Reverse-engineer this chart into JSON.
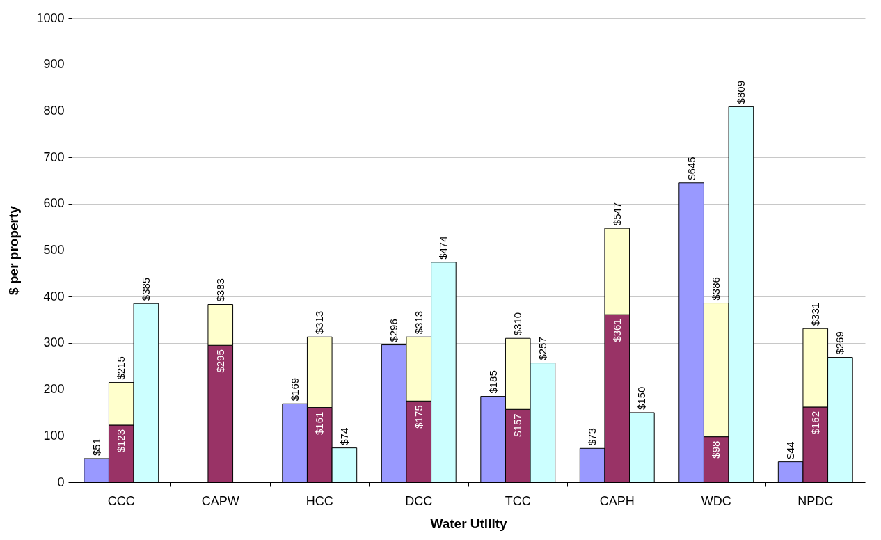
{
  "chart_data": {
    "type": "bar",
    "xlabel": "Water Utility",
    "ylabel": "$ per property",
    "stacked": true,
    "categories": [
      null,
      "CCC",
      null,
      null,
      "CAPW",
      null,
      null,
      "HCC",
      null,
      null,
      "DCC",
      null,
      null,
      "TCC",
      null,
      null,
      "CAPH",
      null,
      null,
      "WDC",
      null,
      null,
      "NPDC",
      null
    ],
    "series": [
      {
        "color": "#9999ff",
        "values": [
          51,
          null,
          null,
          null,
          null,
          null,
          169,
          null,
          null,
          296,
          null,
          null,
          185,
          null,
          null,
          73,
          null,
          null,
          645,
          null,
          null,
          44,
          null,
          null
        ],
        "value_labels": [
          "$51",
          null,
          null,
          null,
          null,
          null,
          "$169",
          null,
          null,
          "$296",
          null,
          null,
          "$185",
          null,
          null,
          "$73",
          null,
          null,
          "$645",
          null,
          null,
          "$44",
          null,
          null
        ]
      },
      {
        "color": "#993366",
        "values": [
          null,
          123,
          null,
          null,
          295,
          null,
          null,
          161,
          null,
          null,
          175,
          null,
          null,
          157,
          null,
          null,
          361,
          null,
          null,
          98,
          null,
          null,
          162,
          null
        ],
        "value_labels": [
          null,
          "$123",
          null,
          null,
          "$295",
          null,
          null,
          "$161",
          null,
          null,
          "$175",
          null,
          null,
          "$157",
          null,
          null,
          "$361",
          null,
          null,
          "$98",
          null,
          null,
          "$162",
          null
        ]
      },
      {
        "color": "#ffffcc",
        "values": [
          null,
          92,
          null,
          null,
          88,
          null,
          null,
          152,
          null,
          null,
          138,
          null,
          null,
          153,
          null,
          null,
          186,
          null,
          null,
          288,
          null,
          null,
          169,
          null
        ]
      },
      {
        "color": "#ccffff",
        "values": [
          null,
          null,
          385,
          null,
          null,
          null,
          null,
          null,
          74,
          null,
          null,
          474,
          null,
          null,
          257,
          null,
          null,
          150,
          null,
          null,
          809,
          null,
          null,
          269
        ],
        "value_labels": [
          null,
          null,
          "$385",
          null,
          null,
          null,
          null,
          null,
          "$74",
          null,
          null,
          "$474",
          null,
          null,
          "$257",
          null,
          null,
          "$150",
          null,
          null,
          "$809",
          null,
          null,
          "$269"
        ]
      }
    ],
    "totals": [
      null,
      "$215",
      null,
      null,
      "$383",
      null,
      null,
      "$313",
      null,
      null,
      "$313",
      null,
      null,
      "$310",
      null,
      null,
      "$547",
      null,
      null,
      "$386",
      null,
      null,
      "$331",
      null
    ],
    "ylim": [
      0,
      1000
    ],
    "yticks": [
      0,
      100,
      200,
      300,
      400,
      500,
      600,
      700,
      800,
      900,
      1000
    ],
    "grid": "y"
  }
}
